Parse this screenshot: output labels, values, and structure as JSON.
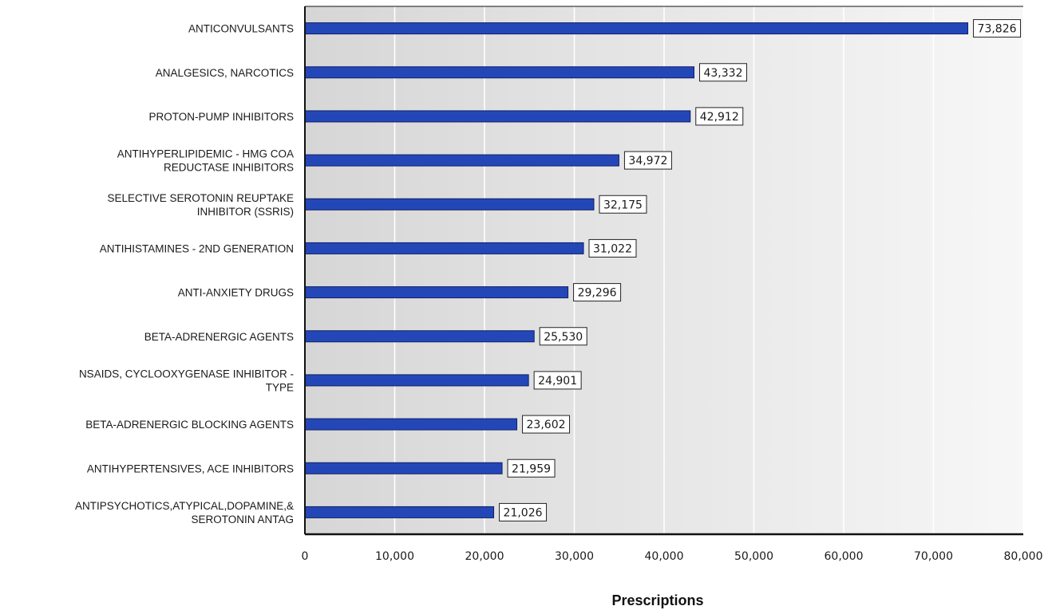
{
  "chart_data": {
    "type": "bar",
    "orientation": "horizontal",
    "categories": [
      [
        "ANTICONVULSANTS"
      ],
      [
        "ANALGESICS, NARCOTICS"
      ],
      [
        "PROTON-PUMP INHIBITORS"
      ],
      [
        "ANTIHYPERLIPIDEMIC - HMG COA",
        "REDUCTASE INHIBITORS"
      ],
      [
        "SELECTIVE SEROTONIN REUPTAKE",
        "INHIBITOR (SSRIS)"
      ],
      [
        "ANTIHISTAMINES - 2ND GENERATION"
      ],
      [
        "ANTI-ANXIETY DRUGS"
      ],
      [
        "BETA-ADRENERGIC AGENTS"
      ],
      [
        "NSAIDS, CYCLOOXYGENASE INHIBITOR -",
        "TYPE"
      ],
      [
        "BETA-ADRENERGIC BLOCKING AGENTS"
      ],
      [
        "ANTIHYPERTENSIVES, ACE INHIBITORS"
      ],
      [
        "ANTIPSYCHOTICS,ATYPICAL,DOPAMINE,&",
        "SEROTONIN ANTAG"
      ]
    ],
    "values": [
      73826,
      43332,
      42912,
      34972,
      32175,
      31022,
      29296,
      25530,
      24901,
      23602,
      21959,
      21026
    ],
    "data_labels": [
      "73,826",
      "43,332",
      "42,912",
      "34,972",
      "32,175",
      "31,022",
      "29,296",
      "25,530",
      "24,901",
      "23,602",
      "21,959",
      "21,026"
    ],
    "xlabel": "Prescriptions",
    "ylabel": "",
    "xlim": [
      0,
      80000
    ],
    "xticks": [
      0,
      10000,
      20000,
      30000,
      40000,
      50000,
      60000,
      70000,
      80000
    ],
    "xtick_labels": [
      "0",
      "10,000",
      "20,000",
      "30,000",
      "40,000",
      "50,000",
      "60,000",
      "70,000",
      "80,000"
    ],
    "grid": "vertical",
    "legend": "none",
    "colors": {
      "bar": "#2447b8",
      "bar_edge": "#0e1f66",
      "plot_bg_dark": "#d6d6d6",
      "plot_bg_light": "#f7f7f7",
      "axis": "#111111",
      "grid": "#ffffff"
    }
  }
}
